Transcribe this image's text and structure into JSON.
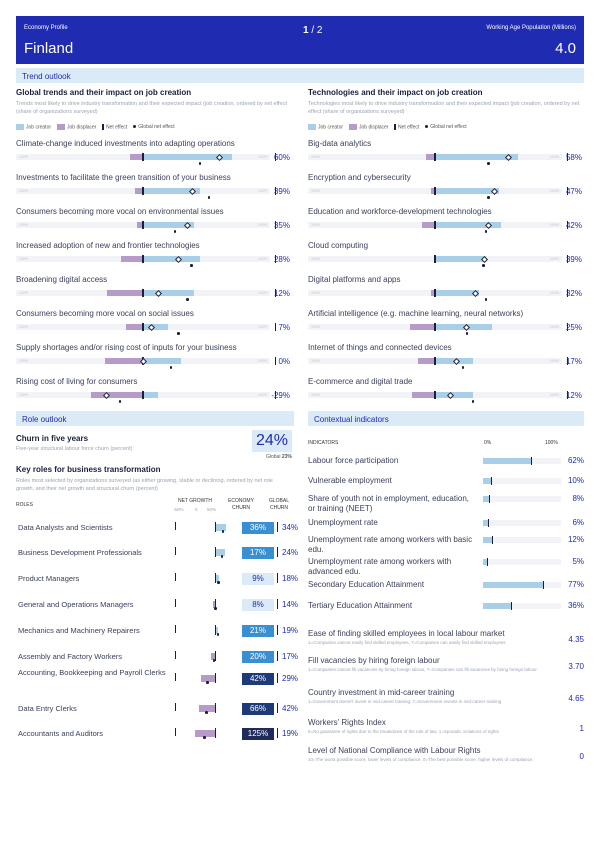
{
  "header": {
    "left": "Economy Profile",
    "pager_current": "1",
    "pager_sep": "/",
    "pager_total": "2",
    "right": "Working Age Population (Millions)",
    "country": "Finland",
    "population": "4.0"
  },
  "trend_outlook": {
    "title": "Trend outlook",
    "left_title": "Global trends and their impact on job creation",
    "left_desc": "Trends most likely to drive industry transformation and their expected impact (job creation, ordered by net effect (share of organizations surveyed)",
    "right_title": "Technologies and their impact on job creation",
    "right_desc": "Technologies most likely to drive industry transformation and their expected impact (job creation, ordered by net effect (share of organizations surveyed)",
    "legend": {
      "creator": "Job creator",
      "displacer": "Job displacer",
      "net": "Net effect",
      "global": "Global net effect"
    },
    "colors": {
      "creator": "#a9cfe8",
      "displacer": "#b69bc8"
    },
    "axis_label": "100%",
    "trends": [
      {
        "label": "Climate-change induced investments into adapting operations",
        "creator": 70,
        "displacer": 10,
        "net": 60,
        "global": 45,
        "value": "60%"
      },
      {
        "label": "Investments to facilitate the green transition of your business",
        "creator": 45,
        "displacer": 6,
        "net": 39,
        "global": 52,
        "value": "39%"
      },
      {
        "label": "Consumers becoming more vocal on environmental issues",
        "creator": 40,
        "displacer": 5,
        "net": 35,
        "global": 25,
        "value": "35%"
      },
      {
        "label": "Increased adoption of new and frontier technologies",
        "creator": 45,
        "displacer": 17,
        "net": 28,
        "global": 38,
        "value": "28%"
      },
      {
        "label": "Broadening digital access",
        "creator": 40,
        "displacer": 28,
        "net": 12,
        "global": 35,
        "value": "12%"
      },
      {
        "label": "Consumers becoming more vocal on social issues",
        "creator": 20,
        "displacer": 13,
        "net": 7,
        "global": 28,
        "value": "7%"
      },
      {
        "label": "Supply shortages and/or rising cost of inputs for your business",
        "creator": 30,
        "displacer": 30,
        "net": 0,
        "global": 22,
        "value": "0%"
      },
      {
        "label": "Rising cost of living for consumers",
        "creator": 12,
        "displacer": 41,
        "net": -29,
        "global": -18,
        "value": "-29%"
      }
    ],
    "technologies": [
      {
        "label": "Big-data analytics",
        "creator": 65,
        "displacer": 7,
        "net": 58,
        "global": 42,
        "value": "58%"
      },
      {
        "label": "Encryption and cybersecurity",
        "creator": 50,
        "displacer": 3,
        "net": 47,
        "global": 42,
        "value": "47%"
      },
      {
        "label": "Education and workforce-development technologies",
        "creator": 52,
        "displacer": 10,
        "net": 42,
        "global": 40,
        "value": "42%"
      },
      {
        "label": "Cloud computing",
        "creator": 40,
        "displacer": 1,
        "net": 39,
        "global": 38,
        "value": "39%"
      },
      {
        "label": "Digital platforms and apps",
        "creator": 35,
        "displacer": 3,
        "net": 32,
        "global": 40,
        "value": "32%"
      },
      {
        "label": "Artificial intelligence (e.g. machine learning, neural networks)",
        "creator": 45,
        "displacer": 20,
        "net": 25,
        "global": 25,
        "value": "25%"
      },
      {
        "label": "Internet of things and connected devices",
        "creator": 30,
        "displacer": 13,
        "net": 17,
        "global": 22,
        "value": "17%"
      },
      {
        "label": "E-commerce and digital trade",
        "creator": 30,
        "displacer": 18,
        "net": 12,
        "global": 30,
        "value": "12%"
      }
    ]
  },
  "role_outlook": {
    "title": "Role outlook",
    "churn_title": "Churn in five years",
    "churn_value": "24%",
    "churn_desc": "Five-year structural labour force churn (percent)",
    "global_label": "Global",
    "global_value": "23%",
    "key_roles_title": "Key roles for business transformation",
    "key_roles_desc": "Roles most selected by organizations surveyed (as either growing, stable or declining, ordered by net role growth, and their net growth and structural churn (percent)",
    "col_roles": "ROLES",
    "col_net": "NET GROWTH",
    "col_net_ticks": [
      "-50%",
      "0",
      "50%"
    ],
    "col_economy": "ECONOMY",
    "col_economy2": "CHURN",
    "col_global": "GLOBAL",
    "col_global2": "CHURN",
    "roles": [
      {
        "name": "Data Analysts and Scientists",
        "growth": 14,
        "economy": "36%",
        "global": "34%",
        "shade": "#3a8fd0"
      },
      {
        "name": "Business Development Professionals",
        "growth": 12,
        "economy": "17%",
        "global": "24%",
        "shade": "#3a8fd0"
      },
      {
        "name": "Product Managers",
        "growth": 5,
        "economy": "9%",
        "global": "18%",
        "shade": "#dbeaf7"
      },
      {
        "name": "General and Operations Managers",
        "growth": -2,
        "economy": "8%",
        "global": "14%",
        "shade": "#dbeaf7"
      },
      {
        "name": "Mechanics and Machinery Repairers",
        "growth": 4,
        "economy": "21%",
        "global": "19%",
        "shade": "#3a8fd0"
      },
      {
        "name": "Assembly and Factory Workers",
        "growth": -5,
        "economy": "20%",
        "global": "17%",
        "shade": "#3a8fd0"
      },
      {
        "name": "Accounting, Bookkeeping and Payroll Clerks",
        "growth": -18,
        "economy": "42%",
        "global": "29%",
        "shade": "#1f3a78"
      },
      {
        "name": "Data Entry Clerks",
        "growth": -20,
        "economy": "66%",
        "global": "42%",
        "shade": "#1f3a78"
      },
      {
        "name": "Accountants and Auditors",
        "growth": -25,
        "economy": "125%",
        "global": "19%",
        "shade": "#1f2b5a"
      }
    ]
  },
  "contextual": {
    "title": "Contextual indicators",
    "col_ind": "INDICATORS",
    "col_0": "0%",
    "col_100": "100%",
    "indicators": [
      {
        "label": "Labour force participation",
        "value": "62%",
        "fill": 62
      },
      {
        "label": "Vulnerable employment",
        "value": "10%",
        "fill": 10
      },
      {
        "label": "Share of youth not in employment, education, or training (NEET)",
        "value": "8%",
        "fill": 8
      },
      {
        "label": "Unemployment rate",
        "value": "6%",
        "fill": 6
      },
      {
        "label": "Unemployment rate among workers with basic edu.",
        "value": "12%",
        "fill": 12
      },
      {
        "label": "Unemployment rate among workers with advanced edu.",
        "value": "5%",
        "fill": 5
      },
      {
        "label": "Secondary Education Attainment",
        "value": "77%",
        "fill": 77
      },
      {
        "label": "Tertiary Education Attainment",
        "value": "36%",
        "fill": 36
      }
    ],
    "scored": [
      {
        "label": "Ease of finding skilled employees in local labour market",
        "sub": "1=Companies cannot easily find skilled employees, 7=Companies can easily find skilled employees",
        "value": "4.35"
      },
      {
        "label": "Fill vacancies by hiring foreign labour",
        "sub": "1=Companies cannot fill vacancies by hiring foreign labour, 7=Companies can fill vacancies by hiring foreign labour",
        "value": "3.70"
      },
      {
        "label": "Country investment in mid-career training",
        "sub": "1=Government doesn't invest in mid-career training, 7=Government invests in mid-career training",
        "value": "4.65"
      },
      {
        "label": "Workers' Rights Index",
        "sub": "5=No guarantee of rights due to the breakdown of the rule of law, 1=Sporadic violations of rights",
        "value": "1"
      },
      {
        "label": "Level of National Compliance with Labour Rights",
        "sub": "10=The worst possible score, lower levels of compliance. 0=The best possible score, higher levels of compliance.",
        "value": "0"
      }
    ]
  }
}
